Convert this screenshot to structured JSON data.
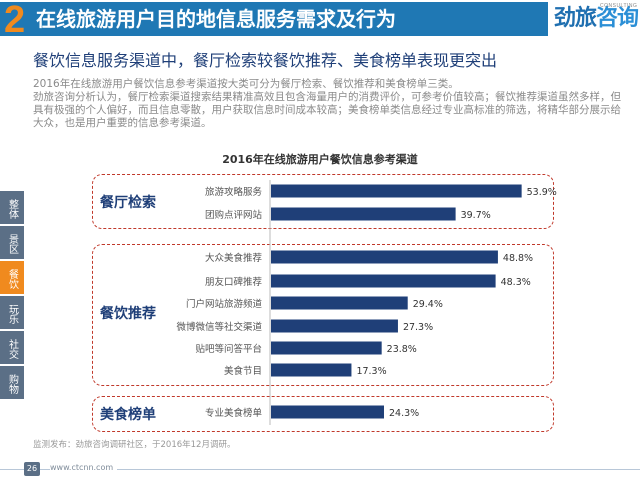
{
  "header": {
    "number": "2",
    "title": "在线旅游用户目的地信息服务需求及行为",
    "logo_text_1": "劲旅",
    "logo_text_2": "咨询",
    "logo_sub": "CONSULTING"
  },
  "subtitle": "餐饮信息服务渠道中，餐厅检索较餐饮推荐、美食榜单表现更突出",
  "description": [
    "2016年在线旅游用户餐饮信息参考渠道按大类可分为餐厅检索、餐饮推荐和美食榜单三类。",
    "劲旅咨询分析认为，餐厅检索渠道搜索结果精准高效且包含海量用户的消费评价，可参考价值较高；餐饮推荐渠道虽然多样，但具有极强的个人偏好，而且信息零散，用户获取信息时间成本较高；美食榜单类信息经过专业高标准的筛选，将精华部分展示给大众，也是用户重要的信息参考渠道。"
  ],
  "side_nav": [
    {
      "label": "整体",
      "active": false
    },
    {
      "label": "景区",
      "active": false
    },
    {
      "label": "餐饮",
      "active": true
    },
    {
      "label": "玩乐",
      "active": false
    },
    {
      "label": "社交",
      "active": false
    },
    {
      "label": "购物",
      "active": false
    }
  ],
  "chart_data": {
    "type": "bar",
    "orientation": "horizontal",
    "title": "2016年在线旅游用户餐饮信息参考渠道",
    "unit": "%",
    "bar_color": "#1f3f78",
    "groups": [
      {
        "name": "餐厅检索",
        "categories": [
          "旅游攻略服务",
          "团购点评网站"
        ],
        "values": [
          53.9,
          39.7
        ]
      },
      {
        "name": "餐饮推荐",
        "categories": [
          "大众美食推荐",
          "朋友口碑推荐",
          "门户网站旅游频道",
          "微博微信等社交渠道",
          "贴吧等问答平台",
          "美食节目"
        ],
        "values": [
          48.8,
          48.3,
          29.4,
          27.3,
          23.8,
          17.3
        ]
      },
      {
        "name": "美食榜单",
        "categories": [
          "专业美食榜单"
        ],
        "values": [
          24.3
        ]
      }
    ]
  },
  "footer": {
    "note": "监测发布：劲旅咨询调研社区，于2016年12月调研。",
    "page": "26",
    "url": "www.ctcnn.com"
  }
}
